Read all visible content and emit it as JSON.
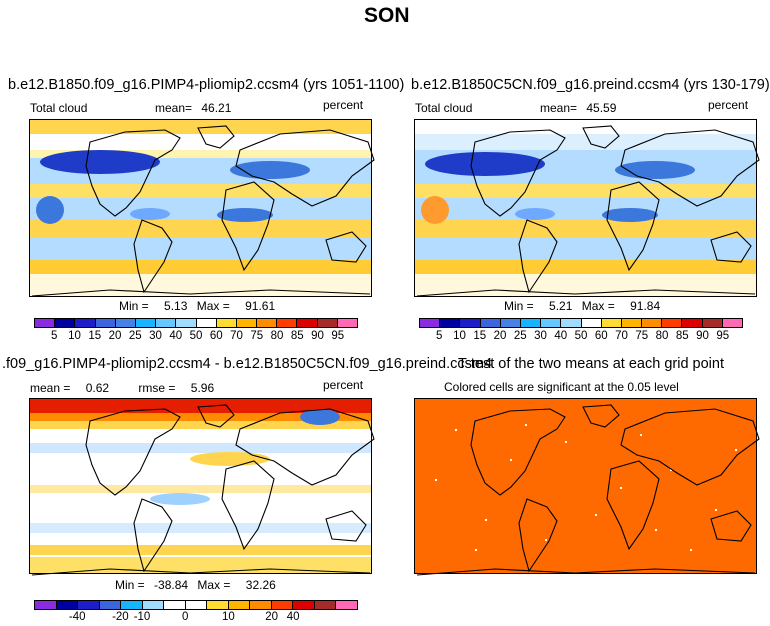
{
  "page_title": "SON",
  "panels": {
    "top_left": {
      "title": "b.e12.B1850.f09_g16.PIMP4-pliomip2.ccsm4 (yrs 1051-1100)",
      "variable": "Total cloud",
      "mean_label": "mean=",
      "mean_value": "46.21",
      "units": "percent",
      "min_label": "Min =",
      "min_value": "5.13",
      "max_label": "Max =",
      "max_value": "91.61"
    },
    "top_right": {
      "title": "b.e12.B1850C5CN.f09_g16.preind.ccsm4 (yrs 130-179)",
      "variable": "Total cloud",
      "mean_label": "mean=",
      "mean_value": "45.59",
      "units": "percent",
      "min_label": "Min =",
      "min_value": "5.21",
      "max_label": "Max =",
      "max_value": "91.84"
    },
    "bottom_left": {
      "title": ".f09_g16.PIMP4-pliomip2.ccsm4 - b.e12.B1850C5CN.f09_g16.preind.ccsm4",
      "mean_label": "mean =",
      "mean_value": "0.62",
      "rmse_label": "rmse =",
      "rmse_value": "5.96",
      "units": "percent",
      "min_label": "Min =",
      "min_value": "-38.84",
      "max_label": "Max =",
      "max_value": "32.26"
    },
    "bottom_right": {
      "title": "T-test of the two means at each grid point",
      "subtitle": "Colored cells are significant at the 0.05 level"
    }
  },
  "colorbar_abs": {
    "labels": [
      "5",
      "10",
      "15",
      "20",
      "25",
      "30",
      "40",
      "50",
      "60",
      "70",
      "75",
      "80",
      "85",
      "90",
      "95"
    ],
    "colors": [
      "#8a2be2",
      "#0000a0",
      "#1e1ec8",
      "#3c64dc",
      "#4682e6",
      "#19b4ff",
      "#64c8ff",
      "#a0dcff",
      "#ffffff",
      "#ffdc32",
      "#ffb400",
      "#ff8c00",
      "#ff3c00",
      "#dc0000",
      "#a52a2a",
      "#ff69b4"
    ]
  },
  "colorbar_diff": {
    "labels": [
      "-40",
      "-20",
      "-10",
      "0",
      "10",
      "20",
      "40"
    ],
    "colors": [
      "#8a2be2",
      "#0000a0",
      "#1e1ec8",
      "#3c64dc",
      "#19b4ff",
      "#a0dcff",
      "#ffffff",
      "#ffffff",
      "#ffdc32",
      "#ffb400",
      "#ff8c00",
      "#ff3c00",
      "#dc0000",
      "#a52a2a",
      "#ff69b4"
    ]
  },
  "colors": {
    "ttest_fill": "#ff6a00",
    "coastline": "#000000"
  }
}
